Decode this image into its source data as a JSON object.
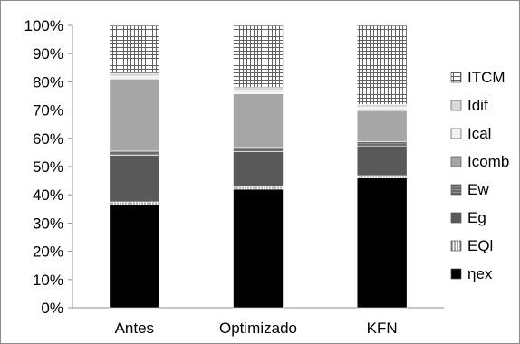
{
  "chart_data": {
    "type": "bar",
    "stacked": true,
    "percent": true,
    "title": "",
    "xlabel": "",
    "ylabel": "",
    "ylim": [
      0,
      100
    ],
    "grid": false,
    "legend_position": "right",
    "categories": [
      "Antes",
      "Optimizado",
      "KFN"
    ],
    "ytick_labels": [
      "0%",
      "10%",
      "20%",
      "30%",
      "40%",
      "50%",
      "60%",
      "70%",
      "80%",
      "90%",
      "100%"
    ],
    "series": [
      {
        "name": "ηex",
        "values": [
          36.5,
          42,
          46
        ],
        "color": "#000000",
        "pattern": "solid"
      },
      {
        "name": "EQl",
        "values": [
          1,
          0.8,
          0.8
        ],
        "color": "#ffffff",
        "pattern": "vertical-lines"
      },
      {
        "name": "Eg",
        "values": [
          16.5,
          12.5,
          10.5
        ],
        "color": "#595959",
        "pattern": "solid"
      },
      {
        "name": "Ew",
        "values": [
          1.5,
          1.5,
          1.5
        ],
        "color": "#7f7f7f",
        "pattern": "horizontal-lines"
      },
      {
        "name": "Icomb",
        "values": [
          25.5,
          19,
          11
        ],
        "color": "#a6a6a6",
        "pattern": "solid"
      },
      {
        "name": "Ical",
        "values": [
          1,
          1.2,
          1.2
        ],
        "color": "#f2f2f2",
        "pattern": "solid"
      },
      {
        "name": "Idif",
        "values": [
          1,
          1,
          1
        ],
        "color": "#d9d9d9",
        "pattern": "solid"
      },
      {
        "name": "ITCM",
        "values": [
          17,
          22,
          28
        ],
        "color": "#ffffff",
        "pattern": "grid"
      }
    ]
  }
}
